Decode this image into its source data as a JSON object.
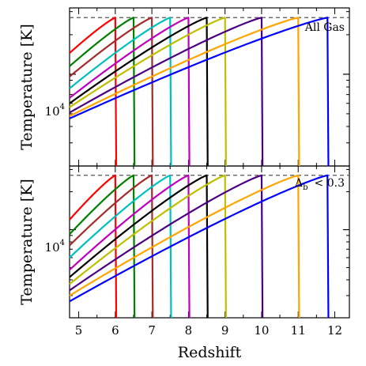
{
  "chart_data": {
    "type": "line",
    "xlabel": "Redshift",
    "ylabel": "Temperature [K]",
    "x_ticks": [
      "5",
      "6",
      "7",
      "8",
      "9",
      "10",
      "11",
      "12"
    ],
    "y_tick_label_base": "10",
    "y_tick_label_exp": "4",
    "xlim": [
      4.75,
      12.4
    ],
    "ylim": [
      2000,
      32000
    ],
    "yscale": "log",
    "reference_line": {
      "y": 27000,
      "style": "dashed",
      "color": "#555555"
    },
    "panels": [
      {
        "annotation": "All Gas",
        "series": [
          {
            "z_reion": 6.0,
            "color": "#ff0000",
            "y_at_xmin": 14500
          },
          {
            "z_reion": 6.5,
            "color": "#008000",
            "y_at_xmin": 11500
          },
          {
            "z_reion": 7.0,
            "color": "#a52a2a",
            "y_at_xmin": 9600
          },
          {
            "z_reion": 7.5,
            "color": "#00bfbf",
            "y_at_xmin": 7800
          },
          {
            "z_reion": 8.0,
            "color": "#bf00bf",
            "y_at_xmin": 6600
          },
          {
            "z_reion": 8.5,
            "color": "#000000",
            "y_at_xmin": 6000
          },
          {
            "z_reion": 9.0,
            "color": "#bfbf00",
            "y_at_xmin": 5600
          },
          {
            "z_reion": 10.0,
            "color": "#4b0082",
            "y_at_xmin": 5100
          },
          {
            "z_reion": 11.0,
            "color": "#ffa500",
            "y_at_xmin": 4800
          },
          {
            "z_reion": 11.8,
            "color": "#0000ff",
            "y_at_xmin": 4600
          }
        ]
      },
      {
        "annotation_main": "Δ",
        "annotation_sub": "b",
        "annotation_rest": "< 0.3",
        "series": [
          {
            "z_reion": 6.0,
            "color": "#ff0000",
            "y_at_xmin": 12000
          },
          {
            "z_reion": 6.5,
            "color": "#008000",
            "y_at_xmin": 9200
          },
          {
            "z_reion": 7.0,
            "color": "#a52a2a",
            "y_at_xmin": 7500
          },
          {
            "z_reion": 7.5,
            "color": "#00bfbf",
            "y_at_xmin": 6000
          },
          {
            "z_reion": 8.0,
            "color": "#bf00bf",
            "y_at_xmin": 4800
          },
          {
            "z_reion": 8.5,
            "color": "#000000",
            "y_at_xmin": 4200
          },
          {
            "z_reion": 9.0,
            "color": "#bfbf00",
            "y_at_xmin": 3700
          },
          {
            "z_reion": 10.0,
            "color": "#4b0082",
            "y_at_xmin": 3300
          },
          {
            "z_reion": 11.0,
            "color": "#ffa500",
            "y_at_xmin": 3000
          },
          {
            "z_reion": 11.8,
            "color": "#0000ff",
            "y_at_xmin": 2700
          }
        ]
      }
    ]
  }
}
